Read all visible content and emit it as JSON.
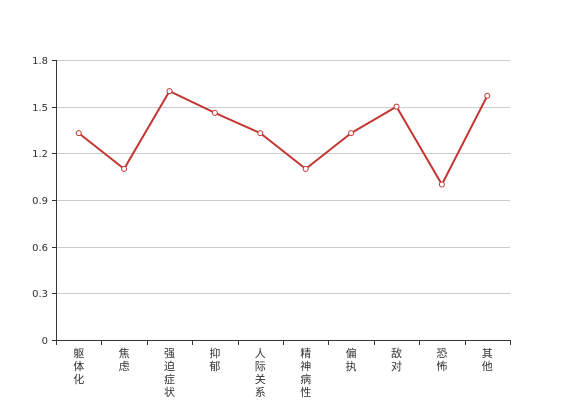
{
  "chart_data": {
    "type": "line",
    "categories": [
      "躯体化",
      "焦虑",
      "强迫症状",
      "抑郁",
      "人际关系敏",
      "精神病性",
      "偏执",
      "敌对",
      "恐怖",
      "其他"
    ],
    "series": [
      {
        "values": [
          1.33,
          1.1,
          1.6,
          1.46,
          1.33,
          1.1,
          1.33,
          1.5,
          1.0,
          1.57
        ]
      }
    ],
    "yticks": [
      "0",
      "0.3",
      "0.6",
      "0.9",
      "1.2",
      "1.5",
      "1.8"
    ],
    "ylim": [
      0,
      1.8
    ],
    "grid": true,
    "colors": {
      "line": "#c23531",
      "grid": "#cccccc",
      "axis": "#333333"
    }
  }
}
